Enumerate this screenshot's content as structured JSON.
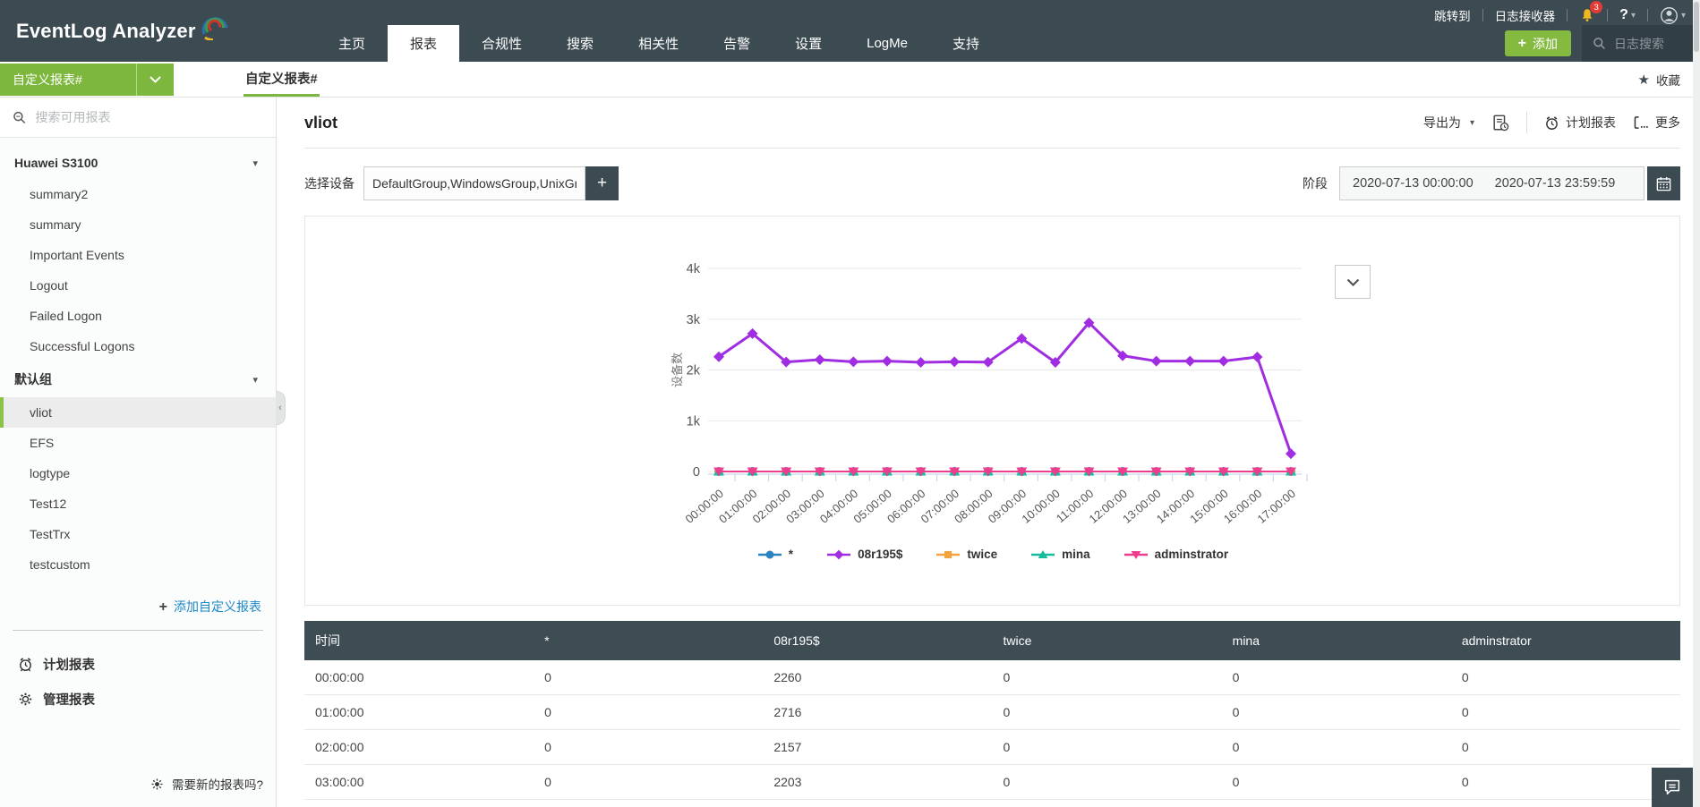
{
  "icons": {
    "star": "★",
    "plus": "+",
    "caret_down": "▾",
    "chevron_left": "‹"
  },
  "topbar": {
    "logo": "EventLog Analyzer",
    "utility": {
      "jump_to": "跳转到",
      "log_receiver": "日志接收器",
      "badge_count": "3",
      "help": "?"
    },
    "nav": [
      {
        "label": "主页",
        "active": false
      },
      {
        "label": "报表",
        "active": true
      },
      {
        "label": "合规性",
        "active": false
      },
      {
        "label": "搜索",
        "active": false
      },
      {
        "label": "相关性",
        "active": false
      },
      {
        "label": "告警",
        "active": false
      },
      {
        "label": "设置",
        "active": false
      },
      {
        "label": "LogMe",
        "active": false
      },
      {
        "label": "支持",
        "active": false
      }
    ],
    "add_label": "添加",
    "search_label": "日志搜索"
  },
  "subheader": {
    "group_dropdown": "自定义报表#",
    "tab": "自定义报表#",
    "favorite": "收藏"
  },
  "sidebar": {
    "search_placeholder": "搜索可用报表",
    "groups": [
      {
        "name": "Huawei S3100",
        "items": [
          {
            "label": "summary2",
            "selected": false
          },
          {
            "label": "summary",
            "selected": false
          },
          {
            "label": "Important Events",
            "selected": false
          },
          {
            "label": "Logout",
            "selected": false
          },
          {
            "label": "Failed Logon",
            "selected": false
          },
          {
            "label": "Successful Logons",
            "selected": false
          }
        ]
      },
      {
        "name": "默认组",
        "items": [
          {
            "label": "vliot",
            "selected": true
          },
          {
            "label": "EFS",
            "selected": false
          },
          {
            "label": "logtype",
            "selected": false
          },
          {
            "label": "Test12",
            "selected": false
          },
          {
            "label": "TestTrx",
            "selected": false
          },
          {
            "label": "testcustom",
            "selected": false
          }
        ]
      }
    ],
    "add_custom_report": "添加自定义报表",
    "scheduled_reports": "计划报表",
    "manage_reports": "管理报表",
    "need_new_report": "需要新的报表吗?"
  },
  "main": {
    "title": "vliot",
    "toolbar": {
      "export_as": "导出为",
      "scheduled_reports": "计划报表",
      "more": "更多"
    },
    "device_label": "选择设备",
    "device_value": "DefaultGroup,WindowsGroup,UnixGro",
    "period_label": "阶段",
    "period_from": "2020-07-13 00:00:00",
    "period_to": "2020-07-13 23:59:59"
  },
  "chart_data": {
    "type": "line",
    "title": "",
    "xlabel": "",
    "ylabel": "设备数",
    "ylim": [
      0,
      4000
    ],
    "yticks": [
      {
        "v": 0,
        "label": "0"
      },
      {
        "v": 1000,
        "label": "1k"
      },
      {
        "v": 2000,
        "label": "2k"
      },
      {
        "v": 3000,
        "label": "3k"
      },
      {
        "v": 4000,
        "label": "4k"
      }
    ],
    "grid": true,
    "legend_position": "bottom",
    "x": [
      "00:00:00",
      "01:00:00",
      "02:00:00",
      "03:00:00",
      "04:00:00",
      "05:00:00",
      "06:00:00",
      "07:00:00",
      "08:00:00",
      "09:00:00",
      "10:00:00",
      "11:00:00",
      "12:00:00",
      "13:00:00",
      "14:00:00",
      "15:00:00",
      "16:00:00",
      "17:00:00"
    ],
    "series": [
      {
        "name": "*",
        "color": "#2b83c0",
        "marker": "circle",
        "values": [
          0,
          0,
          0,
          0,
          0,
          0,
          0,
          0,
          0,
          0,
          0,
          0,
          0,
          0,
          0,
          0,
          0,
          0
        ]
      },
      {
        "name": "08r195$",
        "color": "#a02de2",
        "marker": "diamond",
        "values": [
          2260,
          2716,
          2157,
          2203,
          2160,
          2175,
          2150,
          2160,
          2155,
          2620,
          2150,
          2930,
          2280,
          2175,
          2175,
          2175,
          2255,
          350
        ]
      },
      {
        "name": "twice",
        "color": "#f2a33c",
        "marker": "square",
        "values": [
          0,
          0,
          0,
          0,
          0,
          0,
          0,
          0,
          0,
          0,
          0,
          0,
          0,
          0,
          0,
          0,
          0,
          0
        ]
      },
      {
        "name": "mina",
        "color": "#17bc9c",
        "marker": "triangle",
        "values": [
          0,
          0,
          0,
          0,
          0,
          0,
          0,
          0,
          0,
          0,
          0,
          0,
          0,
          0,
          0,
          0,
          0,
          0
        ]
      },
      {
        "name": "adminstrator",
        "color": "#ee3d8f",
        "marker": "triangle-down",
        "values": [
          0,
          0,
          0,
          0,
          0,
          0,
          0,
          0,
          0,
          0,
          0,
          0,
          0,
          0,
          0,
          0,
          0,
          0
        ]
      }
    ]
  },
  "table": {
    "headers": [
      "时间",
      "*",
      "08r195$",
      "twice",
      "mina",
      "adminstrator"
    ],
    "rows": [
      [
        "00:00:00",
        "0",
        "2260",
        "0",
        "0",
        "0"
      ],
      [
        "01:00:00",
        "0",
        "2716",
        "0",
        "0",
        "0"
      ],
      [
        "02:00:00",
        "0",
        "2157",
        "0",
        "0",
        "0"
      ],
      [
        "03:00:00",
        "0",
        "2203",
        "0",
        "0",
        "0"
      ]
    ]
  }
}
